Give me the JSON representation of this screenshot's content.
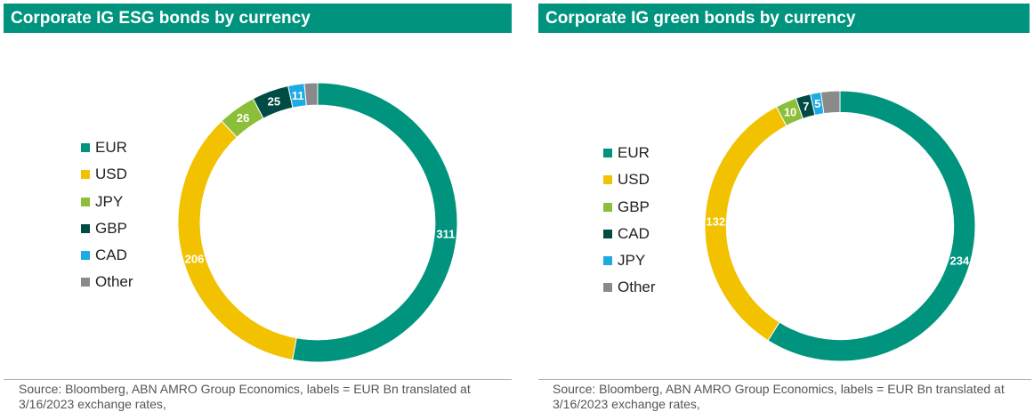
{
  "chart_data": [
    {
      "type": "pie",
      "title": "Corporate IG ESG bonds by currency",
      "categories": [
        "EUR",
        "USD",
        "JPY",
        "GBP",
        "CAD",
        "Other"
      ],
      "values": [
        311,
        206,
        26,
        25,
        11,
        null
      ],
      "colors": [
        "#00947e",
        "#f2c100",
        "#8bbf3a",
        "#004c45",
        "#1cabe2",
        "#8a8a8a"
      ],
      "value_labels": [
        "311",
        "206",
        "26",
        "25",
        "11",
        ""
      ],
      "estimated_values": [
        311,
        206,
        26,
        25,
        11,
        9
      ],
      "hole": 0.84,
      "legend_position": "left",
      "source": "Source: Bloomberg, ABN AMRO Group Economics, labels = EUR Bn translated at 3/16/2023 exchange rates,"
    },
    {
      "type": "pie",
      "title": "Corporate IG green bonds by currency",
      "categories": [
        "EUR",
        "USD",
        "GBP",
        "CAD",
        "JPY",
        "Other"
      ],
      "values": [
        234,
        132,
        10,
        7,
        5,
        null
      ],
      "colors": [
        "#00947e",
        "#f2c100",
        "#8bbf3a",
        "#004c45",
        "#1cabe2",
        "#8a8a8a"
      ],
      "value_labels": [
        "234",
        "132",
        "10",
        "7",
        "5",
        ""
      ],
      "estimated_values": [
        234,
        132,
        10,
        7,
        5,
        9
      ],
      "hole": 0.84,
      "legend_position": "left",
      "source": "Source: Bloomberg, ABN AMRO Group Economics, labels = EUR Bn translated at 3/16/2023 exchange rates,"
    }
  ]
}
